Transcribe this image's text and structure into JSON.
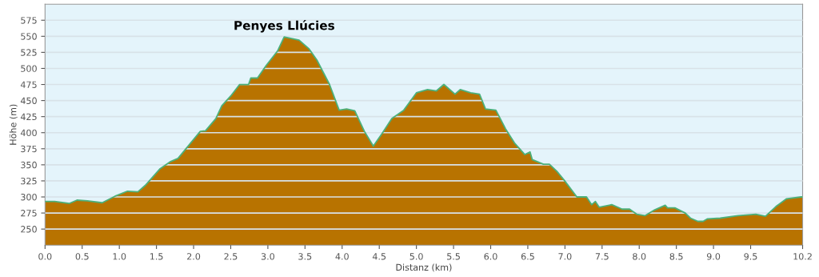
{
  "chart_data": {
    "type": "area",
    "xlabel": "Distanz (km)",
    "ylabel": "Höhe (m)",
    "x": [
      0,
      0.13,
      0.33,
      0.43,
      0.57,
      0.77,
      0.94,
      1.11,
      1.25,
      1.35,
      1.55,
      1.69,
      1.79,
      1.89,
      2.09,
      2.16,
      2.3,
      2.38,
      2.5,
      2.62,
      2.74,
      2.77,
      2.86,
      2.98,
      3.13,
      3.22,
      3.42,
      3.55,
      3.66,
      3.83,
      3.96,
      4.06,
      4.17,
      4.3,
      4.42,
      4.54,
      4.67,
      4.83,
      5.0,
      5.15,
      5.27,
      5.37,
      5.52,
      5.59,
      5.73,
      5.85,
      5.93,
      6.07,
      6.2,
      6.32,
      6.46,
      6.53,
      6.56,
      6.71,
      6.79,
      6.89,
      6.99,
      7.16,
      7.29,
      7.36,
      7.41,
      7.46,
      7.63,
      7.77,
      7.87,
      7.97,
      8.08,
      8.21,
      8.35,
      8.38,
      8.48,
      8.62,
      8.69,
      8.79,
      8.86,
      8.92,
      9.09,
      9.33,
      9.57,
      9.7,
      9.84,
      9.98,
      10.18,
      10.2
    ],
    "series": [
      {
        "color": "#b87300",
        "values": [
          293,
          293,
          290,
          295,
          294,
          291,
          301,
          309,
          308,
          318,
          344,
          355,
          360,
          374,
          402,
          403,
          422,
          442,
          457,
          475,
          475,
          485,
          485,
          505,
          527,
          549,
          544,
          531,
          513,
          475,
          435,
          437,
          434,
          402,
          379,
          399,
          422,
          435,
          462,
          467,
          465,
          475,
          460,
          467,
          462,
          460,
          437,
          435,
          406,
          384,
          366,
          370,
          358,
          351,
          351,
          340,
          326,
          300,
          300,
          288,
          293,
          284,
          288,
          281,
          281,
          273,
          271,
          280,
          287,
          283,
          283,
          275,
          267,
          262,
          262,
          266,
          267,
          271,
          273,
          270,
          285,
          297,
          300,
          300
        ]
      },
      {
        "type": "line",
        "color": "#4cb07a",
        "values": [
          293,
          293,
          290,
          295,
          294,
          291,
          301,
          309,
          308,
          318,
          344,
          355,
          360,
          374,
          402,
          403,
          422,
          442,
          457,
          475,
          475,
          485,
          485,
          505,
          527,
          549,
          544,
          531,
          513,
          475,
          435,
          437,
          434,
          402,
          379,
          399,
          422,
          435,
          462,
          467,
          465,
          475,
          460,
          467,
          462,
          460,
          437,
          435,
          406,
          384,
          366,
          370,
          358,
          351,
          351,
          340,
          326,
          300,
          300,
          288,
          293,
          284,
          288,
          281,
          281,
          273,
          271,
          280,
          287,
          283,
          283,
          275,
          267,
          262,
          262,
          266,
          267,
          271,
          273,
          270,
          285,
          297,
          300,
          300
        ]
      }
    ],
    "xlim": [
      0,
      10.2
    ],
    "ylim": [
      225,
      600
    ],
    "xticks": [
      {
        "value": 0,
        "label": "0.0"
      },
      {
        "value": 0.5,
        "label": "0.5"
      },
      {
        "value": 1,
        "label": "1.0"
      },
      {
        "value": 1.5,
        "label": "1.5"
      },
      {
        "value": 2,
        "label": "2.0"
      },
      {
        "value": 2.5,
        "label": "2.5"
      },
      {
        "value": 3,
        "label": "3.0"
      },
      {
        "value": 3.5,
        "label": "3.5"
      },
      {
        "value": 4,
        "label": "4.0"
      },
      {
        "value": 4.5,
        "label": "4.5"
      },
      {
        "value": 5,
        "label": "5.0"
      },
      {
        "value": 5.5,
        "label": "5.5"
      },
      {
        "value": 6,
        "label": "6.0"
      },
      {
        "value": 6.5,
        "label": "6.5"
      },
      {
        "value": 7,
        "label": "7.0"
      },
      {
        "value": 7.5,
        "label": "7.5"
      },
      {
        "value": 8,
        "label": "8.0"
      },
      {
        "value": 8.5,
        "label": "8.5"
      },
      {
        "value": 9,
        "label": "9.0"
      },
      {
        "value": 9.5,
        "label": "9.5"
      },
      {
        "value": 10.2,
        "label": "10.2"
      }
    ],
    "yticks": [
      250,
      275,
      300,
      325,
      350,
      375,
      400,
      425,
      450,
      475,
      500,
      525,
      550,
      575
    ],
    "grid": "y",
    "annotations": [
      {
        "text": "Penyes Llúcies",
        "x": 3.22,
        "y": 549
      }
    ]
  }
}
